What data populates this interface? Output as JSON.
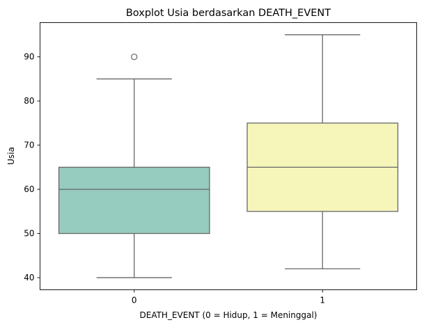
{
  "chart_data": {
    "type": "box",
    "title": "Boxplot Usia berdasarkan DEATH_EVENT",
    "xlabel": "DEATH_EVENT (0 = Hidup, 1 = Meninggal)",
    "ylabel": "Usia",
    "categories": [
      "0",
      "1"
    ],
    "ylim": [
      37.25,
      97.75
    ],
    "yticks": [
      40,
      50,
      60,
      70,
      80,
      90
    ],
    "grid": false,
    "boxes": [
      {
        "category": "0",
        "whisker_low": 40,
        "q1": 50,
        "median": 60,
        "q3": 65,
        "whisker_high": 85,
        "outliers": [
          90
        ],
        "color": "#96cbbf"
      },
      {
        "category": "1",
        "whisker_low": 42,
        "q1": 55,
        "median": 65,
        "q3": 75,
        "whisker_high": 95,
        "outliers": [],
        "color": "#f6f6bb"
      }
    ],
    "line_color": "#666666"
  }
}
